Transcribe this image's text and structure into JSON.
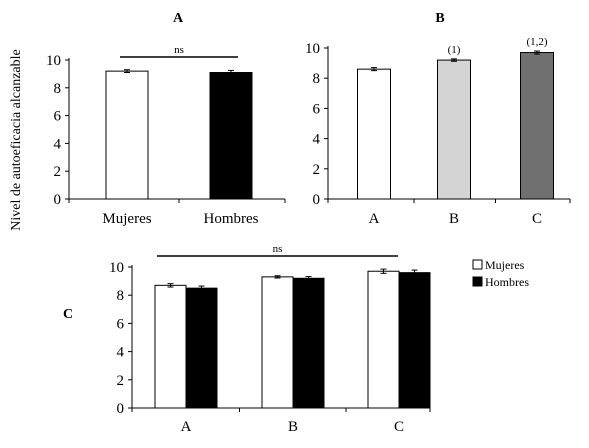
{
  "colors": {
    "white": "#ffffff",
    "black": "#000000",
    "light_gray": "#d4d4d4",
    "dark_gray": "#707070"
  },
  "ylabel": "Nivel de autoeficacia alcanzable",
  "chart_data": [
    {
      "type": "bar",
      "panel_label": "A",
      "categories": [
        "Mujeres",
        "Hombres"
      ],
      "values": [
        9.2,
        9.1
      ],
      "errors": [
        0.1,
        0.15
      ],
      "bar_colors": [
        "#ffffff",
        "#000000"
      ],
      "ylim": [
        0,
        10
      ],
      "yticks": [
        "0",
        "2",
        "4",
        "6",
        "8",
        "10"
      ],
      "annotations": [
        {
          "text": "ns",
          "type": "bracket",
          "between": [
            "Mujeres",
            "Hombres"
          ]
        }
      ]
    },
    {
      "type": "bar",
      "panel_label": "B",
      "categories": [
        "A",
        "B",
        "C"
      ],
      "values": [
        8.6,
        9.2,
        9.7
      ],
      "errors": [
        0.1,
        0.08,
        0.1
      ],
      "bar_colors": [
        "#ffffff",
        "#d4d4d4",
        "#707070"
      ],
      "bar_labels": [
        "",
        "(1)",
        "(1,2)"
      ],
      "ylim": [
        0,
        10
      ],
      "yticks": [
        "0",
        "2",
        "4",
        "6",
        "8",
        "10"
      ]
    },
    {
      "type": "bar",
      "panel_label": "C",
      "categories": [
        "A",
        "B",
        "C"
      ],
      "series": [
        {
          "name": "Mujeres",
          "values": [
            8.7,
            9.3,
            9.7
          ],
          "errors": [
            0.12,
            0.08,
            0.15
          ],
          "color": "#ffffff"
        },
        {
          "name": "Hombres",
          "values": [
            8.5,
            9.2,
            9.6
          ],
          "errors": [
            0.15,
            0.12,
            0.18
          ],
          "color": "#000000"
        }
      ],
      "ylim": [
        0,
        10
      ],
      "yticks": [
        "0",
        "2",
        "4",
        "6",
        "8",
        "10"
      ],
      "legend": "right",
      "annotations": [
        {
          "text": "ns",
          "type": "bracket",
          "between": [
            "A",
            "C"
          ]
        }
      ]
    }
  ]
}
